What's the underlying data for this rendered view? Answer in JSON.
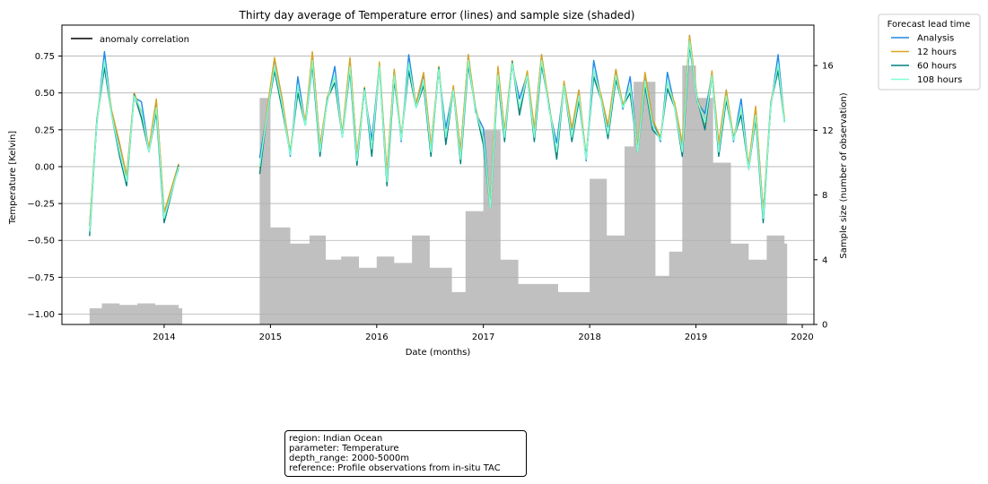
{
  "chart_data": {
    "type": "line",
    "title": "Thirty day average of Temperature error (lines) and sample size (shaded)",
    "xlabel": "Date (months)",
    "ylabel": "Temperature [Kelvin]",
    "y2label": "Sample size (number of observation)",
    "xlim": [
      "2013-01-15",
      "2020-02-10"
    ],
    "ylim": [
      -1.07,
      0.96
    ],
    "y2lim": [
      0,
      18.5
    ],
    "x_ticks": [
      "2014",
      "2015",
      "2016",
      "2017",
      "2018",
      "2019",
      "2020"
    ],
    "y_ticks": [
      "0.75",
      "0.50",
      "0.25",
      "0.00",
      "−0.25",
      "−0.50",
      "−0.75",
      "−1.00"
    ],
    "y2_ticks": [
      "0",
      "4",
      "8",
      "12",
      "16"
    ],
    "grid": "horizontal",
    "axis_legend": {
      "placement": "top-left",
      "label": "anomaly correlation",
      "color": "#000000"
    },
    "legend": {
      "title": "Forecast lead time",
      "placement": "outside-top-right"
    },
    "series": [
      {
        "name": "Analysis",
        "color": "#1e88e5"
      },
      {
        "name": "12 hours",
        "color": "#daa520"
      },
      {
        "name": "60 hours",
        "color": "#008080"
      },
      {
        "name": "108 hours",
        "color": "#7fffd4"
      }
    ],
    "x": [
      "2013-04-20",
      "2013-05-15",
      "2013-06-10",
      "2013-07-05",
      "2013-08-01",
      "2013-08-25",
      "2013-09-20",
      "2013-10-15",
      "2013-11-10",
      "2013-12-05",
      "2014-01-01",
      "2014-02-20",
      "2014-11-25",
      "2014-12-20",
      "2015-01-15",
      "2015-02-10",
      "2015-03-10",
      "2015-04-05",
      "2015-05-01",
      "2015-05-25",
      "2015-06-20",
      "2015-07-15",
      "2015-08-10",
      "2015-09-05",
      "2015-10-01",
      "2015-10-25",
      "2015-11-20",
      "2015-12-15",
      "2016-01-10",
      "2016-02-05",
      "2016-03-01",
      "2016-03-25",
      "2016-04-20",
      "2016-05-15",
      "2016-06-10",
      "2016-07-05",
      "2016-08-01",
      "2016-08-25",
      "2016-09-20",
      "2016-10-15",
      "2016-11-10",
      "2016-12-05",
      "2017-01-01",
      "2017-01-25",
      "2017-02-20",
      "2017-03-15",
      "2017-04-10",
      "2017-05-05",
      "2017-06-01",
      "2017-06-25",
      "2017-07-20",
      "2017-08-15",
      "2017-09-10",
      "2017-10-05",
      "2017-11-01",
      "2017-11-25",
      "2017-12-20",
      "2018-01-15",
      "2018-02-10",
      "2018-03-05",
      "2018-04-01",
      "2018-04-25",
      "2018-05-20",
      "2018-06-15",
      "2018-07-10",
      "2018-08-05",
      "2018-09-01",
      "2018-09-25",
      "2018-10-20",
      "2018-11-15",
      "2018-12-10",
      "2019-01-05",
      "2019-02-01",
      "2019-02-25",
      "2019-03-20",
      "2019-04-15",
      "2019-05-10",
      "2019-06-05",
      "2019-07-01",
      "2019-07-25",
      "2019-08-20",
      "2019-09-15",
      "2019-10-10",
      "2019-11-01"
    ],
    "y_108h": [
      -0.44,
      0.3,
      0.72,
      0.35,
      0.1,
      -0.1,
      0.48,
      0.38,
      0.1,
      0.4,
      -0.35,
      0.0,
      0.0,
      0.35,
      0.68,
      0.42,
      0.08,
      0.55,
      0.28,
      0.72,
      0.1,
      0.45,
      0.62,
      0.2,
      0.68,
      0.04,
      0.52,
      0.12,
      0.68,
      -0.1,
      0.62,
      0.18,
      0.7,
      0.4,
      0.58,
      0.1,
      0.66,
      0.2,
      0.52,
      0.05,
      0.72,
      0.38,
      0.2,
      -0.28,
      0.62,
      0.2,
      0.7,
      0.4,
      0.62,
      0.2,
      0.72,
      0.4,
      0.1,
      0.55,
      0.2,
      0.48,
      0.05,
      0.66,
      0.45,
      0.22,
      0.62,
      0.4,
      0.55,
      0.1,
      0.58,
      0.28,
      0.18,
      0.58,
      0.4,
      0.1,
      0.85,
      0.45,
      0.3,
      0.62,
      0.1,
      0.48,
      0.18,
      0.4,
      -0.02,
      0.35,
      -0.35,
      0.42,
      0.7,
      0.3
    ],
    "bars_x": [
      "2013-04-20",
      "2013-06-01",
      "2013-08-01",
      "2013-10-01",
      "2013-12-01",
      "2014-02-20",
      "2014-11-25",
      "2015-01-01",
      "2015-03-10",
      "2015-05-15",
      "2015-07-10",
      "2015-09-01",
      "2015-11-01",
      "2016-01-01",
      "2016-03-01",
      "2016-05-01",
      "2016-07-01",
      "2016-09-15",
      "2016-11-01",
      "2017-01-01",
      "2017-03-01",
      "2017-05-01",
      "2017-07-15",
      "2017-09-15",
      "2017-11-15",
      "2018-01-01",
      "2018-03-01",
      "2018-05-01",
      "2018-06-01",
      "2018-08-15",
      "2018-10-01",
      "2018-11-15",
      "2019-01-01",
      "2019-03-01",
      "2019-05-01",
      "2019-07-01",
      "2019-09-01",
      "2019-11-01"
    ],
    "sample_size": [
      1.0,
      1.3,
      1.2,
      1.3,
      1.2,
      1.0,
      14.0,
      6.0,
      5.0,
      5.5,
      4.0,
      4.2,
      3.5,
      4.2,
      3.8,
      5.5,
      3.5,
      2.0,
      7.0,
      12.0,
      4.0,
      2.5,
      2.5,
      2.0,
      2.0,
      9.0,
      5.5,
      11.0,
      15.0,
      3.0,
      4.5,
      16.0,
      14.0,
      10.0,
      5.0,
      4.0,
      5.5,
      5.0
    ]
  },
  "info_box": {
    "region": "region: Indian Ocean",
    "parameter": "parameter: Temperature",
    "depth": "depth_range: 2000-5000m",
    "reference": "reference: Profile observations from in-situ TAC"
  }
}
